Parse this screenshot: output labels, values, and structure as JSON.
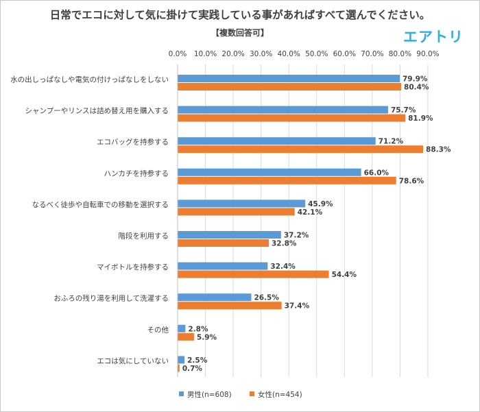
{
  "header": {
    "title": "日常でエコに対して気に掛けて実践している事があればすべて選んでください。",
    "subtitle": "【複数回答可】",
    "logo": "エアトリ"
  },
  "colors": {
    "male": "#5b9bd5",
    "female": "#ed7d31",
    "grid": "#d9d9d9",
    "text": "#404040"
  },
  "chart_data": {
    "type": "bar",
    "orientation": "horizontal",
    "categories": [
      "水の出しっぱなしや電気の付けっぱなしをしない",
      "シャンプーやリンスは詰め替え用を購入する",
      "エコバッグを持参する",
      "ハンカチを持参する",
      "なるべく徒歩や自転車での移動を選択する",
      "階段を利用する",
      "マイボトルを持参する",
      "おふろの残り湯を利用して洗濯する",
      "その他",
      "エコは気にしていない"
    ],
    "series": [
      {
        "name": "男性(n=608)",
        "values": [
          79.9,
          75.7,
          71.2,
          66.0,
          45.9,
          37.2,
          32.4,
          26.5,
          2.8,
          2.5
        ],
        "labels": [
          "79.9%",
          "75.7%",
          "71.2%",
          "66.0%",
          "45.9%",
          "37.2%",
          "32.4%",
          "26.5%",
          "2.8%",
          "2.5%"
        ]
      },
      {
        "name": "女性(n=454)",
        "values": [
          80.4,
          81.9,
          88.3,
          78.6,
          42.1,
          32.8,
          54.4,
          37.4,
          5.9,
          0.7
        ],
        "labels": [
          "80.4%",
          "81.9%",
          "88.3%",
          "78.6%",
          "42.1%",
          "32.8%",
          "54.4%",
          "37.4%",
          "5.9%",
          "0.7%"
        ]
      }
    ],
    "x_ticks": [
      "0.0%",
      "10.0%",
      "20.0%",
      "30.0%",
      "40.0%",
      "50.0%",
      "60.0%",
      "70.0%",
      "80.0%",
      "90.0%"
    ],
    "xlim": [
      0,
      90
    ],
    "grid": true,
    "legend_position": "bottom"
  }
}
